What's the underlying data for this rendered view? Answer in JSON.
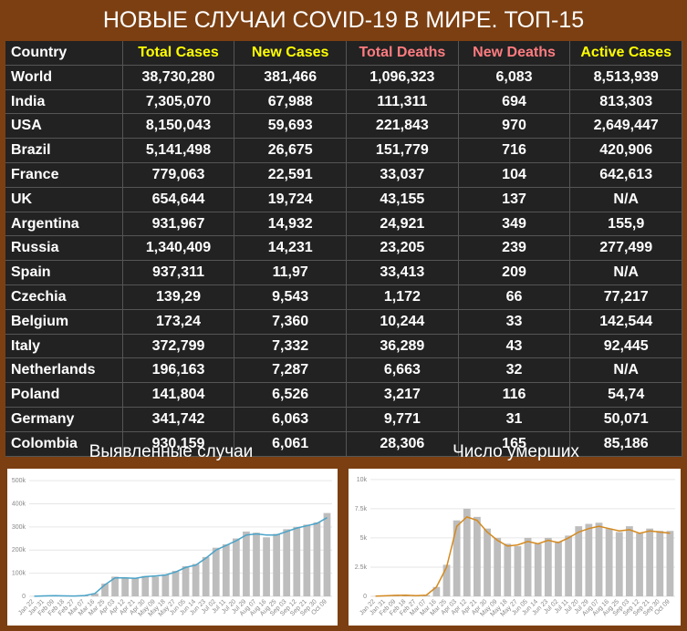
{
  "title": "НОВЫЕ СЛУЧАИ COVID-19 В МИРЕ. ТОП-15",
  "table": {
    "header": [
      "Country",
      "Total Cases",
      "New Cases",
      "Total Deaths",
      "New Deaths",
      "Active Cases"
    ],
    "header_colors": [
      "#ffffff",
      "#ffff00",
      "#ffff00",
      "#ff7c80",
      "#ff7c80",
      "#ffff00"
    ],
    "rows": [
      [
        "World",
        "38,730,280",
        "381,466",
        "1,096,323",
        "6,083",
        "8,513,939"
      ],
      [
        "India",
        "7,305,070",
        "67,988",
        "111,311",
        "694",
        "813,303"
      ],
      [
        "USA",
        "8,150,043",
        "59,693",
        "221,843",
        "970",
        "2,649,447"
      ],
      [
        "Brazil",
        "5,141,498",
        "26,675",
        "151,779",
        "716",
        "420,906"
      ],
      [
        "France",
        "779,063",
        "22,591",
        "33,037",
        "104",
        "642,613"
      ],
      [
        "UK",
        "654,644",
        "19,724",
        "43,155",
        "137",
        "N/A"
      ],
      [
        "Argentina",
        "931,967",
        "14,932",
        "24,921",
        "349",
        "155,9"
      ],
      [
        "Russia",
        "1,340,409",
        "14,231",
        "23,205",
        "239",
        "277,499"
      ],
      [
        "Spain",
        "937,311",
        "11,97",
        "33,413",
        "209",
        "N/A"
      ],
      [
        "Czechia",
        "139,29",
        "9,543",
        "1,172",
        "66",
        "77,217"
      ],
      [
        "Belgium",
        "173,24",
        "7,360",
        "10,244",
        "33",
        "142,544"
      ],
      [
        "Italy",
        "372,799",
        "7,332",
        "36,289",
        "43",
        "92,445"
      ],
      [
        "Netherlands",
        "196,163",
        "7,287",
        "6,663",
        "32",
        "N/A"
      ],
      [
        "Poland",
        "141,804",
        "6,526",
        "3,217",
        "116",
        "54,74"
      ],
      [
        "Germany",
        "341,742",
        "6,063",
        "9,771",
        "31",
        "50,071"
      ],
      [
        "Colombia",
        "930,159",
        "6,061",
        "28,306",
        "165",
        "85,186"
      ]
    ]
  },
  "chart_data": [
    {
      "type": "bar",
      "title": "Выявленные случаи",
      "categories": [
        "Jan 22",
        "Jan 31",
        "Feb 09",
        "Feb 18",
        "Feb 27",
        "Mar 07",
        "Mar 16",
        "Mar 25",
        "Apr 03",
        "Apr 12",
        "Apr 21",
        "Apr 30",
        "May 09",
        "May 18",
        "May 27",
        "Jun 05",
        "Jun 14",
        "Jun 23",
        "Jul 02",
        "Jul 11",
        "Jul 20",
        "Jul 29",
        "Aug 07",
        "Aug 16",
        "Aug 25",
        "Sep 03",
        "Sep 12",
        "Sep 21",
        "Sep 30",
        "Oct 09"
      ],
      "series": [
        {
          "type": "bar",
          "color": "#bdbdbd",
          "values": [
            500,
            2000,
            3000,
            2000,
            1500,
            4000,
            13000,
            55000,
            85000,
            78000,
            80000,
            88000,
            85000,
            95000,
            110000,
            130000,
            140000,
            170000,
            210000,
            225000,
            250000,
            280000,
            275000,
            255000,
            270000,
            290000,
            300000,
            310000,
            320000,
            360000
          ]
        },
        {
          "type": "line",
          "color": "#4aa3c8",
          "values": [
            500,
            1800,
            2800,
            2200,
            1600,
            3500,
            12000,
            50000,
            80000,
            80000,
            78000,
            85000,
            88000,
            92000,
            105000,
            125000,
            135000,
            165000,
            200000,
            220000,
            240000,
            265000,
            270000,
            265000,
            265000,
            280000,
            295000,
            305000,
            315000,
            340000
          ]
        }
      ],
      "ylim": [
        0,
        520000
      ],
      "yticks": [
        0,
        {
          "value": 100000,
          "label": "100k"
        },
        {
          "value": 200000,
          "label": "200k"
        },
        {
          "value": 300000,
          "label": "300k"
        },
        {
          "value": 400000,
          "label": "400k"
        },
        {
          "value": 500000,
          "label": "500k"
        }
      ],
      "grid": true
    },
    {
      "type": "bar",
      "title": "Число умерших",
      "categories": [
        "Jan 22",
        "Jan 31",
        "Feb 09",
        "Feb 18",
        "Feb 27",
        "Mar 07",
        "Mar 16",
        "Mar 25",
        "Apr 03",
        "Apr 12",
        "Apr 21",
        "Apr 30",
        "May 09",
        "May 18",
        "May 27",
        "Jun 05",
        "Jun 14",
        "Jun 23",
        "Jul 02",
        "Jul 11",
        "Jul 20",
        "Jul 29",
        "Aug 07",
        "Aug 16",
        "Aug 25",
        "Sep 03",
        "Sep 12",
        "Sep 21",
        "Sep 30",
        "Oct 09"
      ],
      "series": [
        {
          "type": "bar",
          "color": "#bdbdbd",
          "values": [
            20,
            50,
            90,
            100,
            60,
            100,
            800,
            2700,
            6500,
            7500,
            6800,
            5800,
            5000,
            4500,
            4300,
            5000,
            4500,
            5000,
            4700,
            5200,
            6000,
            6200,
            6300,
            5800,
            5500,
            6000,
            5400,
            5800,
            5600,
            5600
          ]
        },
        {
          "type": "line",
          "color": "#d4891f",
          "values": [
            20,
            50,
            90,
            100,
            60,
            100,
            800,
            2500,
            6000,
            6800,
            6500,
            5500,
            4800,
            4300,
            4400,
            4700,
            4500,
            4800,
            4600,
            5000,
            5500,
            5800,
            6000,
            5800,
            5600,
            5700,
            5400,
            5600,
            5500,
            5400
          ]
        }
      ],
      "ylim": [
        0,
        10300
      ],
      "yticks": [
        0,
        {
          "value": 2500,
          "label": "2.5k"
        },
        {
          "value": 5000,
          "label": "5k"
        },
        {
          "value": 7500,
          "label": "7.5k"
        },
        {
          "value": 10000,
          "label": "10k"
        }
      ],
      "grid": true
    }
  ]
}
